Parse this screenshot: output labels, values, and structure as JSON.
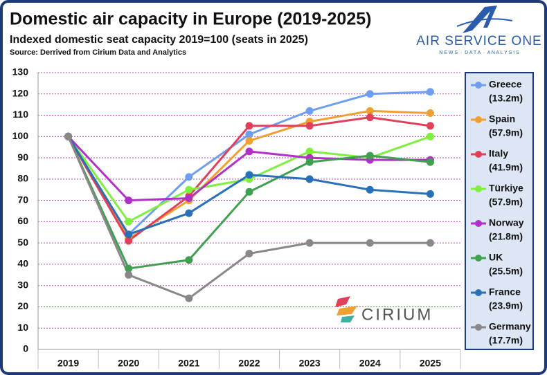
{
  "chart_data": {
    "type": "line",
    "title": "Domestic air capacity in Europe (2019-2025)",
    "subtitle": "Indexed domestic seat capacity 2019=100 (seats in 2025)",
    "source": "Source: Derrived from Cirium Data and Analytics",
    "logos": {
      "brand": "AIR SERVICE ONE",
      "tagline": "N E W S  ·  D A T A  ·  A N A L Y S I S",
      "partner": "CIRIUM"
    },
    "categories": [
      "2019",
      "2020",
      "2021",
      "2022",
      "2023",
      "2024",
      "2025"
    ],
    "ylim": [
      0,
      130
    ],
    "yticks": [
      0,
      10,
      20,
      30,
      40,
      50,
      60,
      70,
      80,
      90,
      100,
      110,
      120,
      130
    ],
    "grid": true,
    "legend": "right",
    "series": [
      {
        "name": "Greece",
        "note": "(13.2m)",
        "color": "#6f9ef0",
        "values": [
          100,
          54,
          81,
          101,
          112,
          120,
          121
        ]
      },
      {
        "name": "Spain",
        "note": "(57.9m)",
        "color": "#f0a030",
        "values": [
          100,
          52,
          70,
          98,
          107,
          112,
          111
        ]
      },
      {
        "name": "Italy",
        "note": "(41.9m)",
        "color": "#e0405a",
        "values": [
          100,
          51,
          72,
          105,
          105,
          109,
          105
        ]
      },
      {
        "name": "Türkiye",
        "note": "(57.9m)",
        "color": "#80f040",
        "values": [
          100,
          60,
          75,
          80,
          93,
          90,
          100
        ]
      },
      {
        "name": "Norway",
        "note": "(21.8m)",
        "color": "#b030c8",
        "values": [
          100,
          70,
          71,
          93,
          90,
          89,
          89
        ]
      },
      {
        "name": "UK",
        "note": "(25.5m)",
        "color": "#40a050",
        "values": [
          100,
          38,
          42,
          74,
          88,
          91,
          88
        ]
      },
      {
        "name": "France",
        "note": "(23.9m)",
        "color": "#2870b8",
        "values": [
          100,
          54,
          64,
          82,
          80,
          75,
          73
        ]
      },
      {
        "name": "Germany",
        "note": "(17.7m)",
        "color": "#888888",
        "values": [
          100,
          35,
          24,
          45,
          50,
          50,
          50
        ]
      }
    ]
  }
}
